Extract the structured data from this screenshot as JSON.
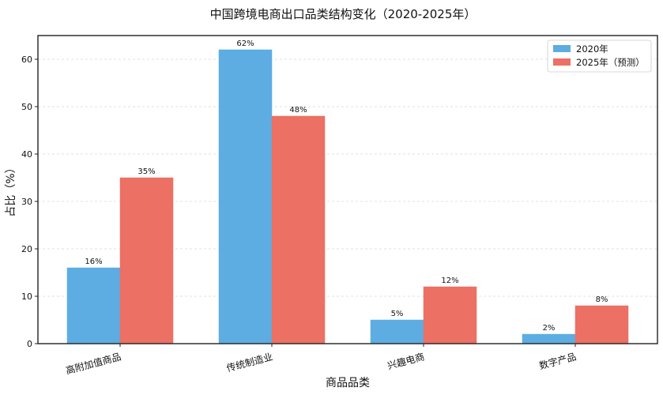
{
  "chart_data": {
    "type": "bar",
    "title": "中国跨境电商出口品类结构变化（2020-2025年）",
    "xlabel": "商品品类",
    "ylabel": "占比（%）",
    "categories": [
      "高附加值商品",
      "传统制造业",
      "兴趣电商",
      "数字产品"
    ],
    "series": [
      {
        "name": "2020年",
        "values": [
          16,
          62,
          5,
          2
        ],
        "labels": [
          "16%",
          "62%",
          "5%",
          "2%"
        ],
        "color": "#5DADE2"
      },
      {
        "name": "2025年（预测）",
        "values": [
          35,
          48,
          12,
          8
        ],
        "labels": [
          "35%",
          "48%",
          "12%",
          "8%"
        ],
        "color": "#EC7063"
      }
    ],
    "ylim": [
      0,
      65
    ],
    "yticks": [
      0,
      10,
      20,
      30,
      40,
      50,
      60
    ],
    "grid": "y-dashed",
    "legend_position": "top-right"
  }
}
